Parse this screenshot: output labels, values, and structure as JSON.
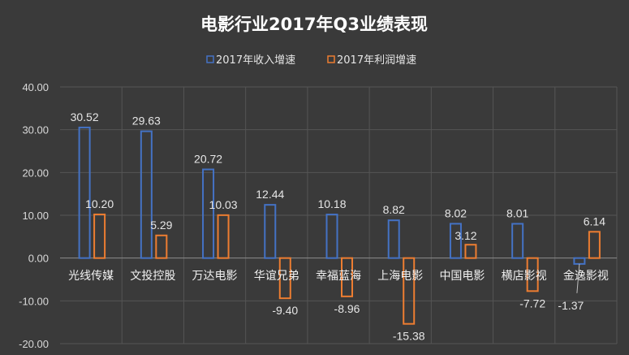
{
  "chart_data": {
    "type": "bar",
    "title": "电影行业2017年Q3业绩表现",
    "categories": [
      "光线传媒",
      "文投控股",
      "万达电影",
      "华谊兄弟",
      "幸福蓝海",
      "上海电影",
      "中国电影",
      "横店影视",
      "金逸影视"
    ],
    "series": [
      {
        "name": "2017年收入增速",
        "color": "#4472c4",
        "values": [
          30.52,
          29.63,
          20.72,
          12.44,
          10.18,
          8.82,
          8.02,
          8.01,
          -1.37
        ]
      },
      {
        "name": "2017年利润增速",
        "color": "#ed7d31",
        "values": [
          10.2,
          5.29,
          10.03,
          -9.4,
          -8.96,
          -15.38,
          3.12,
          -7.72,
          6.14
        ]
      }
    ],
    "ylim": [
      -20,
      40
    ],
    "yticks": [
      "-20.00",
      "-10.00",
      "0.00",
      "10.00",
      "20.00",
      "30.00",
      "40.00"
    ],
    "grid": true,
    "legend_position": "top"
  }
}
